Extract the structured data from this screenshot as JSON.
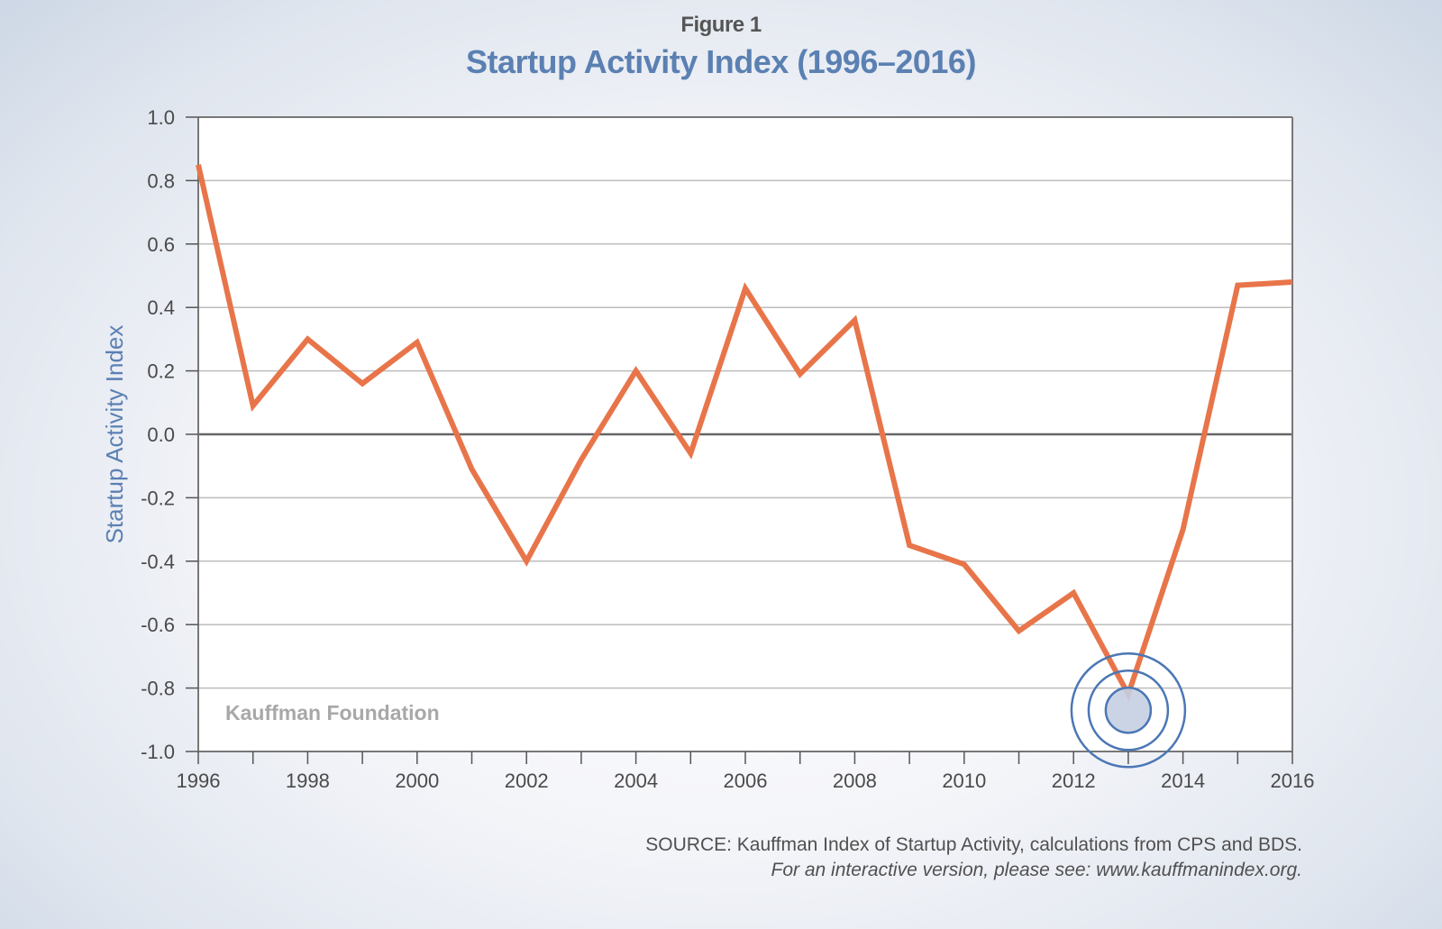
{
  "figure_label": "Figure 1",
  "title": "Startup Activity Index (1996–2016)",
  "watermark": "Kauffman Foundation",
  "source": "SOURCE: Kauffman Index of Startup Activity, calculations from CPS and BDS.",
  "note": "For an interactive version, please see: www.kauffmanindex.org.",
  "colors": {
    "line": "#e8754a",
    "title": "#5b80b2",
    "highlight_ring": "#4b77b5",
    "highlight_fill": "#c5cfe2"
  },
  "chart_data": {
    "type": "line",
    "title": "Startup Activity Index (1996–2016)",
    "xlabel": "",
    "ylabel": "Startup Activity Index",
    "x": [
      1996,
      1997,
      1998,
      1999,
      2000,
      2001,
      2002,
      2003,
      2004,
      2005,
      2006,
      2007,
      2008,
      2009,
      2010,
      2011,
      2012,
      2013,
      2014,
      2015,
      2016
    ],
    "series": [
      {
        "name": "Startup Activity Index",
        "values": [
          0.85,
          0.09,
          0.3,
          0.16,
          0.29,
          -0.11,
          -0.4,
          -0.08,
          0.2,
          -0.06,
          0.46,
          0.19,
          0.36,
          -0.35,
          -0.41,
          -0.62,
          -0.5,
          -0.82,
          -0.3,
          0.47,
          0.48
        ]
      }
    ],
    "xlim": [
      1996,
      2016
    ],
    "ylim": [
      -1.0,
      1.0
    ],
    "yticks": [
      "1.0",
      "0.8",
      "0.6",
      "0.4",
      "0.2",
      "0.0",
      "-0.2",
      "-0.4",
      "-0.6",
      "-0.8",
      "-1.0"
    ],
    "ytick_values": [
      1.0,
      0.8,
      0.6,
      0.4,
      0.2,
      0.0,
      -0.2,
      -0.4,
      -0.6,
      -0.8,
      -1.0
    ],
    "xticks": [
      "1996",
      "1998",
      "2000",
      "2002",
      "2004",
      "2006",
      "2008",
      "2010",
      "2012",
      "2014",
      "2016"
    ],
    "xtick_values": [
      1996,
      1998,
      2000,
      2002,
      2004,
      2006,
      2008,
      2010,
      2012,
      2014,
      2016
    ],
    "grid": true,
    "legend": "none",
    "annotations": [
      {
        "type": "highlight-circle",
        "x": 2013,
        "y": -0.87,
        "label": "2013 low point"
      }
    ]
  }
}
